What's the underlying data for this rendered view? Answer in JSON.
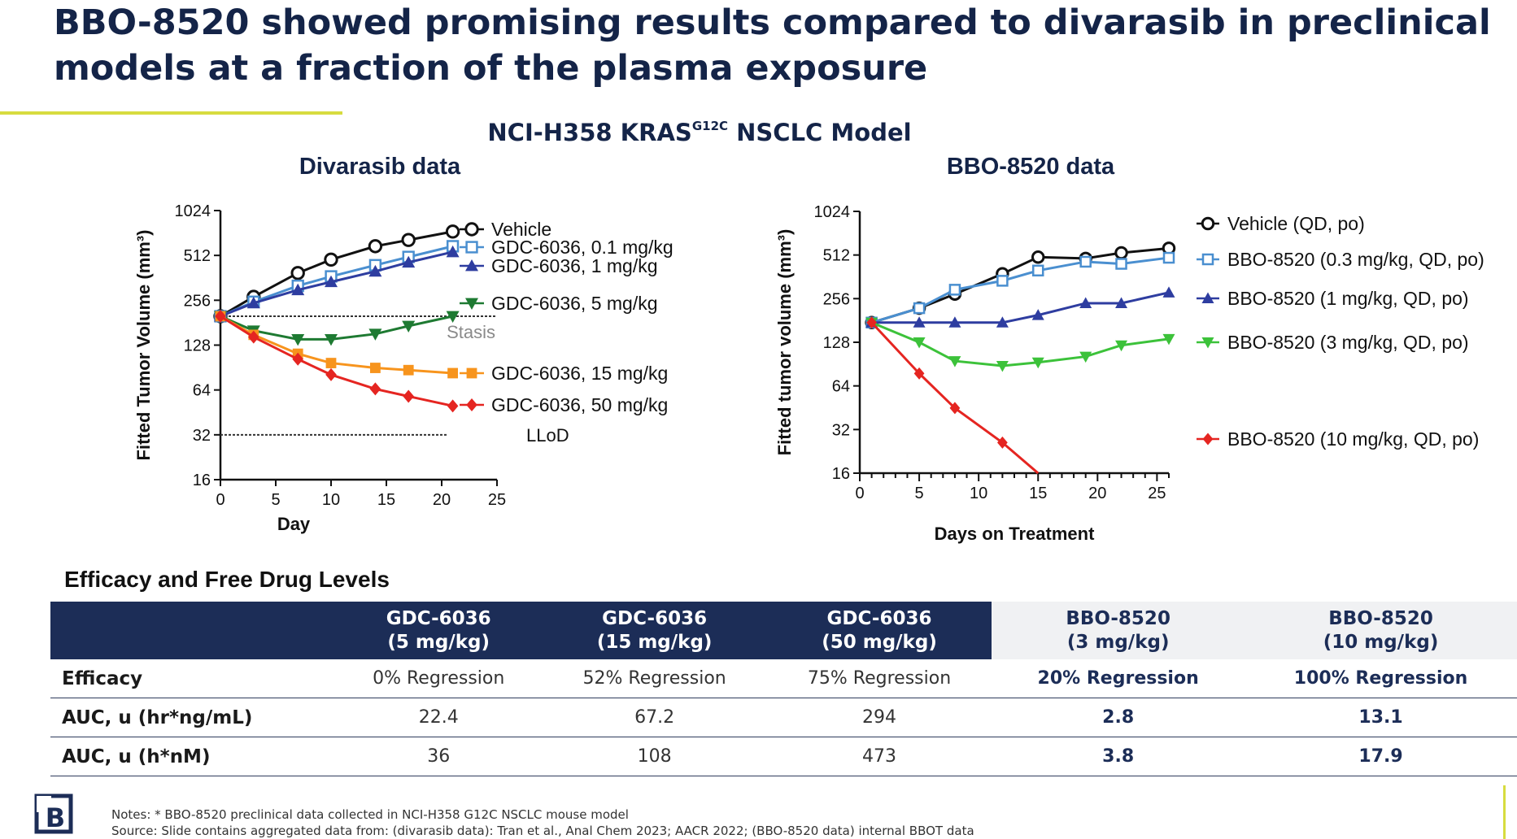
{
  "slide": {
    "title": "BBO-8520 showed promising results compared to divarasib in preclinical models at a fraction of the plasma exposure",
    "section_title_main": "NCI-H358 KRAS",
    "section_title_sup": "G12C",
    "section_title_end": " NSCLC  Model"
  },
  "chart_data": [
    {
      "type": "line",
      "title": "Divarasib data",
      "xlabel": "Day",
      "ylabel": "Fitted Tumor Volume (mm³)",
      "yscale": "log2",
      "xlim": [
        0,
        25
      ],
      "ylim": [
        16,
        1024
      ],
      "xticks": [
        0,
        5,
        10,
        15,
        20,
        25
      ],
      "yticks": [
        16,
        32,
        64,
        128,
        256,
        512,
        1024
      ],
      "legend_position": "right",
      "reference_lines": [
        {
          "label": "Stasis",
          "y": 200
        },
        {
          "label": "LLoD",
          "y": 32
        }
      ],
      "series": [
        {
          "name": "Vehicle",
          "color": "#111111",
          "marker": "circle-open",
          "x": [
            0,
            3,
            7,
            10,
            14,
            17,
            21
          ],
          "y": [
            200,
            270,
            390,
            480,
            590,
            650,
            740
          ]
        },
        {
          "name": "GDC-6036, 0.1 mg/kg",
          "color": "#4a8fd0",
          "marker": "square-open",
          "x": [
            0,
            3,
            7,
            10,
            14,
            17,
            21
          ],
          "y": [
            200,
            250,
            320,
            370,
            440,
            500,
            590
          ]
        },
        {
          "name": "GDC-6036, 1 mg/kg",
          "color": "#2e3da0",
          "marker": "triangle-up",
          "x": [
            0,
            3,
            7,
            10,
            14,
            17,
            21
          ],
          "y": [
            200,
            245,
            300,
            340,
            400,
            460,
            540
          ]
        },
        {
          "name": "GDC-6036, 5 mg/kg",
          "color": "#1e7a32",
          "marker": "triangle-down",
          "x": [
            0,
            3,
            7,
            10,
            14,
            17,
            21
          ],
          "y": [
            200,
            160,
            140,
            140,
            152,
            172,
            200
          ]
        },
        {
          "name": "GDC-6036, 15 mg/kg",
          "color": "#f7941d",
          "marker": "square",
          "x": [
            0,
            3,
            7,
            10,
            14,
            17,
            21
          ],
          "y": [
            200,
            150,
            112,
            97,
            90,
            87,
            83
          ]
        },
        {
          "name": "GDC-6036, 50 mg/kg",
          "color": "#e52521",
          "marker": "diamond",
          "x": [
            0,
            3,
            7,
            10,
            14,
            17,
            21
          ],
          "y": [
            200,
            145,
            103,
            81,
            65,
            58,
            50
          ]
        }
      ]
    },
    {
      "type": "line",
      "title": "BBO-8520 data",
      "xlabel": "Days on Treatment",
      "ylabel": "Fitted tumor volume (mm³)",
      "yscale": "log2",
      "xlim": [
        0,
        26
      ],
      "ylim": [
        16,
        1024
      ],
      "xticks": [
        0,
        5,
        10,
        15,
        20,
        25
      ],
      "yticks": [
        16,
        32,
        64,
        128,
        256,
        512,
        1024
      ],
      "legend_position": "right",
      "series": [
        {
          "name": "Vehicle (QD, po)",
          "color": "#111111",
          "marker": "circle-open",
          "x": [
            1,
            5,
            8,
            12,
            15,
            19,
            22,
            26
          ],
          "y": [
            175,
            220,
            275,
            380,
            495,
            485,
            530,
            570
          ]
        },
        {
          "name": "BBO-8520 (0.3 mg/kg, QD, po)",
          "color": "#4a8fd0",
          "marker": "square-open",
          "x": [
            1,
            5,
            8,
            12,
            15,
            19,
            22,
            26
          ],
          "y": [
            175,
            220,
            295,
            340,
            400,
            460,
            445,
            490
          ]
        },
        {
          "name": "BBO-8520 (1 mg/kg, QD, po)",
          "color": "#2e3da0",
          "marker": "triangle-up",
          "x": [
            1,
            5,
            8,
            12,
            15,
            19,
            22,
            26
          ],
          "y": [
            175,
            175,
            175,
            175,
            197,
            238,
            238,
            282
          ]
        },
        {
          "name": "BBO-8520 (3 mg/kg, QD, po)",
          "color": "#3cc23a",
          "marker": "triangle-down",
          "x": [
            1,
            5,
            8,
            12,
            15,
            19,
            22,
            26
          ],
          "y": [
            175,
            128,
            95,
            88,
            93,
            102,
            122,
            135
          ]
        },
        {
          "name": "BBO-8520 (10 mg/kg, QD, po)",
          "color": "#e52521",
          "marker": "diamond",
          "x": [
            1,
            5,
            8,
            12,
            15
          ],
          "y": [
            175,
            78,
            45,
            26,
            16
          ]
        }
      ]
    }
  ],
  "table": {
    "heading": "Efficacy and Free Drug Levels",
    "columns": [
      {
        "line1": "GDC-6036",
        "line2": "(5 mg/kg)"
      },
      {
        "line1": "GDC-6036",
        "line2": "(15 mg/kg)"
      },
      {
        "line1": "GDC-6036",
        "line2": "(50 mg/kg)"
      },
      {
        "line1": "BBO-8520",
        "line2": "(3 mg/kg)"
      },
      {
        "line1": "BBO-8520",
        "line2": "(10 mg/kg)"
      }
    ],
    "rows": [
      {
        "label": "Efficacy",
        "cells": [
          "0% Regression",
          "52% Regression",
          "75% Regression",
          "20% Regression",
          "100% Regression"
        ]
      },
      {
        "label": "AUC, u (hr*ng/mL)",
        "cells": [
          "22.4",
          "67.2",
          "294",
          "2.8",
          "13.1"
        ]
      },
      {
        "label": "AUC, u (h*nM)",
        "cells": [
          "36",
          "108",
          "473",
          "3.8",
          "17.9"
        ]
      }
    ]
  },
  "footer": {
    "notes": "Notes: * BBO-8520 preclinical data collected in NCI-H358 G12C NSCLC mouse model",
    "source": "Source: Slide contains aggregated data from: (divarasib data): Tran et al., Anal Chem 2023; AACR 2022; (BBO-8520 data) internal BBOT data",
    "logo_text": "B"
  },
  "colors": {
    "navy": "#1c2d57",
    "accent_yellow": "#d7dc3f",
    "light_header": "#f0f1f3"
  }
}
